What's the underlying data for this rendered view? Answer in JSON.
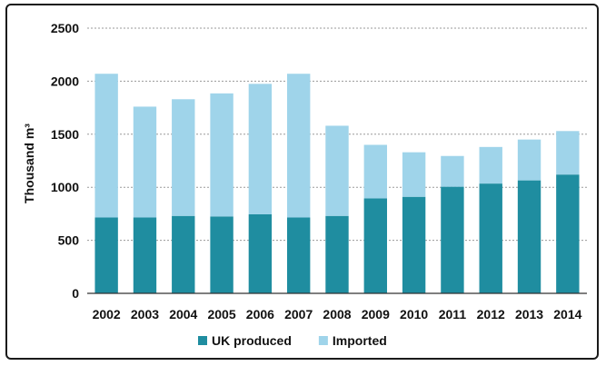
{
  "chart_data": {
    "type": "bar",
    "stacked": true,
    "categories": [
      "2002",
      "2003",
      "2004",
      "2005",
      "2006",
      "2007",
      "2008",
      "2009",
      "2010",
      "2011",
      "2012",
      "2013",
      "2014"
    ],
    "series": [
      {
        "name": "UK produced",
        "color": "#1f8da0",
        "values": [
          715,
          715,
          730,
          725,
          745,
          715,
          730,
          895,
          910,
          1005,
          1035,
          1065,
          1120
        ]
      },
      {
        "name": "Imported",
        "color": "#9fd4ea",
        "values": [
          1355,
          1045,
          1100,
          1160,
          1230,
          1355,
          850,
          505,
          420,
          290,
          345,
          385,
          410
        ]
      }
    ],
    "ylabel": "Thousand m³",
    "ylim": [
      0,
      2500
    ],
    "yticks": [
      0,
      500,
      1000,
      1500,
      2000,
      2500
    ],
    "grid": true,
    "legend_position": "bottom"
  }
}
